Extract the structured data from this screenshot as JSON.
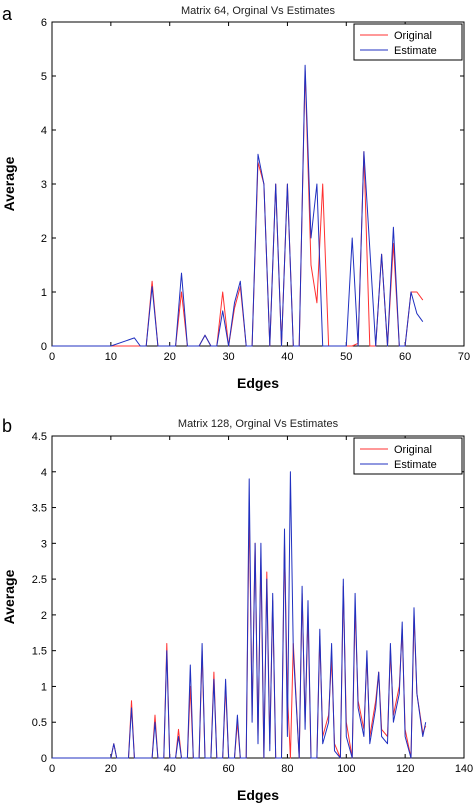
{
  "panels": [
    {
      "letter": "a",
      "chart_data": {
        "type": "line",
        "title": "Matrix 64, Orginal Vs Estimates",
        "xlabel": "Edges",
        "ylabel": "Average",
        "xlim": [
          0,
          70
        ],
        "ylim": [
          0,
          6
        ],
        "xticks": [
          0,
          10,
          20,
          30,
          40,
          50,
          60,
          70
        ],
        "yticks": [
          0,
          1,
          2,
          3,
          4,
          5,
          6
        ],
        "legend_position": "top-right",
        "grid": false,
        "series": [
          {
            "name": "Original",
            "color": "#ff3030",
            "x": [
              0,
              10,
              14,
              15,
              16,
              17,
              18,
              19,
              20,
              21,
              22,
              23,
              24,
              25,
              26,
              27,
              28,
              29,
              30,
              31,
              32,
              33,
              34,
              35,
              36,
              37,
              38,
              39,
              40,
              41,
              42,
              43,
              44,
              45,
              46,
              47,
              48,
              49,
              50,
              51,
              52,
              53,
              54,
              55,
              56,
              57,
              58,
              59,
              60,
              61,
              62,
              63
            ],
            "y": [
              0,
              0,
              0,
              0,
              0,
              1.2,
              0,
              0,
              0,
              0,
              1.0,
              0,
              0,
              0,
              0.2,
              0,
              0,
              1.0,
              0,
              0.7,
              1.1,
              0,
              0,
              3.4,
              3.0,
              0,
              3.0,
              0,
              3.0,
              0,
              0,
              5.1,
              1.5,
              0.8,
              3.0,
              0,
              0,
              0,
              0,
              0,
              0.05,
              3.6,
              0,
              0,
              1.7,
              0,
              1.9,
              0,
              0,
              1.0,
              1.0,
              0.85
            ]
          },
          {
            "name": "Estimate",
            "color": "#2030c0",
            "x": [
              0,
              10,
              14,
              15,
              16,
              17,
              18,
              19,
              20,
              21,
              22,
              23,
              24,
              25,
              26,
              27,
              28,
              29,
              30,
              31,
              32,
              33,
              34,
              35,
              36,
              37,
              38,
              39,
              40,
              41,
              42,
              43,
              44,
              45,
              46,
              47,
              48,
              49,
              50,
              51,
              52,
              53,
              54,
              55,
              56,
              57,
              58,
              59,
              60,
              61,
              62,
              63
            ],
            "y": [
              0,
              0,
              0.15,
              0,
              0,
              1.1,
              0,
              0,
              0,
              0,
              1.35,
              0,
              0,
              0,
              0.2,
              0,
              0,
              0.65,
              0,
              0.8,
              1.2,
              0,
              0,
              3.55,
              3.0,
              0,
              3.0,
              0,
              3.0,
              0,
              0,
              5.2,
              2.0,
              3.0,
              0,
              0,
              0,
              0,
              0,
              2.0,
              0,
              3.6,
              1.8,
              0,
              1.7,
              0,
              2.2,
              0,
              0,
              1.0,
              0.6,
              0.45
            ]
          }
        ]
      }
    },
    {
      "letter": "b",
      "chart_data": {
        "type": "line",
        "title": "Matrix 128, Orginal Vs Estimates",
        "xlabel": "Edges",
        "ylabel": "Average",
        "xlim": [
          0,
          140
        ],
        "ylim": [
          0,
          4.5
        ],
        "xticks": [
          0,
          20,
          40,
          60,
          80,
          100,
          120,
          140
        ],
        "yticks": [
          0,
          0.5,
          1,
          1.5,
          2,
          2.5,
          3,
          3.5,
          4,
          4.5
        ],
        "legend_position": "top-right",
        "grid": false,
        "series": [
          {
            "name": "Original",
            "color": "#ff3030",
            "x": [
              0,
              20,
              21,
              22,
              26,
              27,
              28,
              34,
              35,
              36,
              38,
              39,
              40,
              42,
              43,
              44,
              46,
              47,
              48,
              50,
              51,
              52,
              54,
              55,
              56,
              58,
              59,
              60,
              62,
              63,
              64,
              66,
              67,
              68,
              69,
              70,
              71,
              72,
              73,
              74,
              75,
              76,
              78,
              79,
              80,
              81,
              82,
              84,
              85,
              86,
              87,
              88,
              90,
              91,
              92,
              94,
              95,
              96,
              98,
              99,
              100,
              102,
              103,
              104,
              106,
              107,
              108,
              110,
              111,
              112,
              114,
              115,
              116,
              118,
              119,
              120,
              122,
              123,
              124,
              126,
              127
            ],
            "y": [
              0,
              0,
              0.2,
              0,
              0,
              0.8,
              0,
              0,
              0.6,
              0,
              0,
              1.6,
              0,
              0,
              0.4,
              0,
              0,
              1.0,
              0,
              0,
              1.5,
              0,
              0,
              1.2,
              0,
              0,
              1.0,
              0,
              0,
              0.5,
              0,
              0,
              3.5,
              0.6,
              3.0,
              0.3,
              2.8,
              0,
              2.6,
              0.2,
              2.2,
              0,
              0,
              3.0,
              0.9,
              0,
              1.6,
              0,
              2.3,
              0.5,
              2.0,
              0,
              0,
              1.7,
              0.3,
              0.6,
              1.4,
              0.2,
              0,
              2.4,
              0.5,
              0,
              2.1,
              0.8,
              0.4,
              1.4,
              0.3,
              0.8,
              1.2,
              0.4,
              0.3,
              1.5,
              0.6,
              1.0,
              1.8,
              0.4,
              0,
              2.0,
              0.9,
              0.35,
              0.45
            ]
          },
          {
            "name": "Estimate",
            "color": "#2030c0",
            "x": [
              0,
              20,
              21,
              22,
              26,
              27,
              28,
              34,
              35,
              36,
              38,
              39,
              40,
              42,
              43,
              44,
              46,
              47,
              48,
              50,
              51,
              52,
              54,
              55,
              56,
              58,
              59,
              60,
              62,
              63,
              64,
              66,
              67,
              68,
              69,
              70,
              71,
              72,
              73,
              74,
              75,
              76,
              78,
              79,
              80,
              81,
              82,
              84,
              85,
              86,
              87,
              88,
              90,
              91,
              92,
              94,
              95,
              96,
              98,
              99,
              100,
              102,
              103,
              104,
              106,
              107,
              108,
              110,
              111,
              112,
              114,
              115,
              116,
              118,
              119,
              120,
              122,
              123,
              124,
              126,
              127
            ],
            "y": [
              0,
              0,
              0.2,
              0,
              0,
              0.7,
              0,
              0,
              0.5,
              0,
              0,
              1.5,
              0,
              0,
              0.3,
              0,
              0,
              1.3,
              0,
              0,
              1.6,
              0,
              0,
              1.1,
              0,
              0,
              1.1,
              0,
              0,
              0.6,
              0,
              0,
              3.9,
              0.5,
              3.0,
              0.2,
              3.0,
              0,
              2.5,
              0.1,
              2.3,
              0,
              0,
              3.2,
              0.3,
              4.0,
              1.5,
              0,
              2.4,
              0.4,
              2.2,
              0,
              0,
              1.8,
              0.2,
              0.5,
              1.6,
              0.1,
              0,
              2.5,
              0.3,
              0,
              2.3,
              0.7,
              0.3,
              1.5,
              0.2,
              0.7,
              1.2,
              0.3,
              0.2,
              1.6,
              0.5,
              0.9,
              1.9,
              0.3,
              0,
              2.1,
              0.9,
              0.3,
              0.5
            ]
          }
        ]
      }
    }
  ]
}
